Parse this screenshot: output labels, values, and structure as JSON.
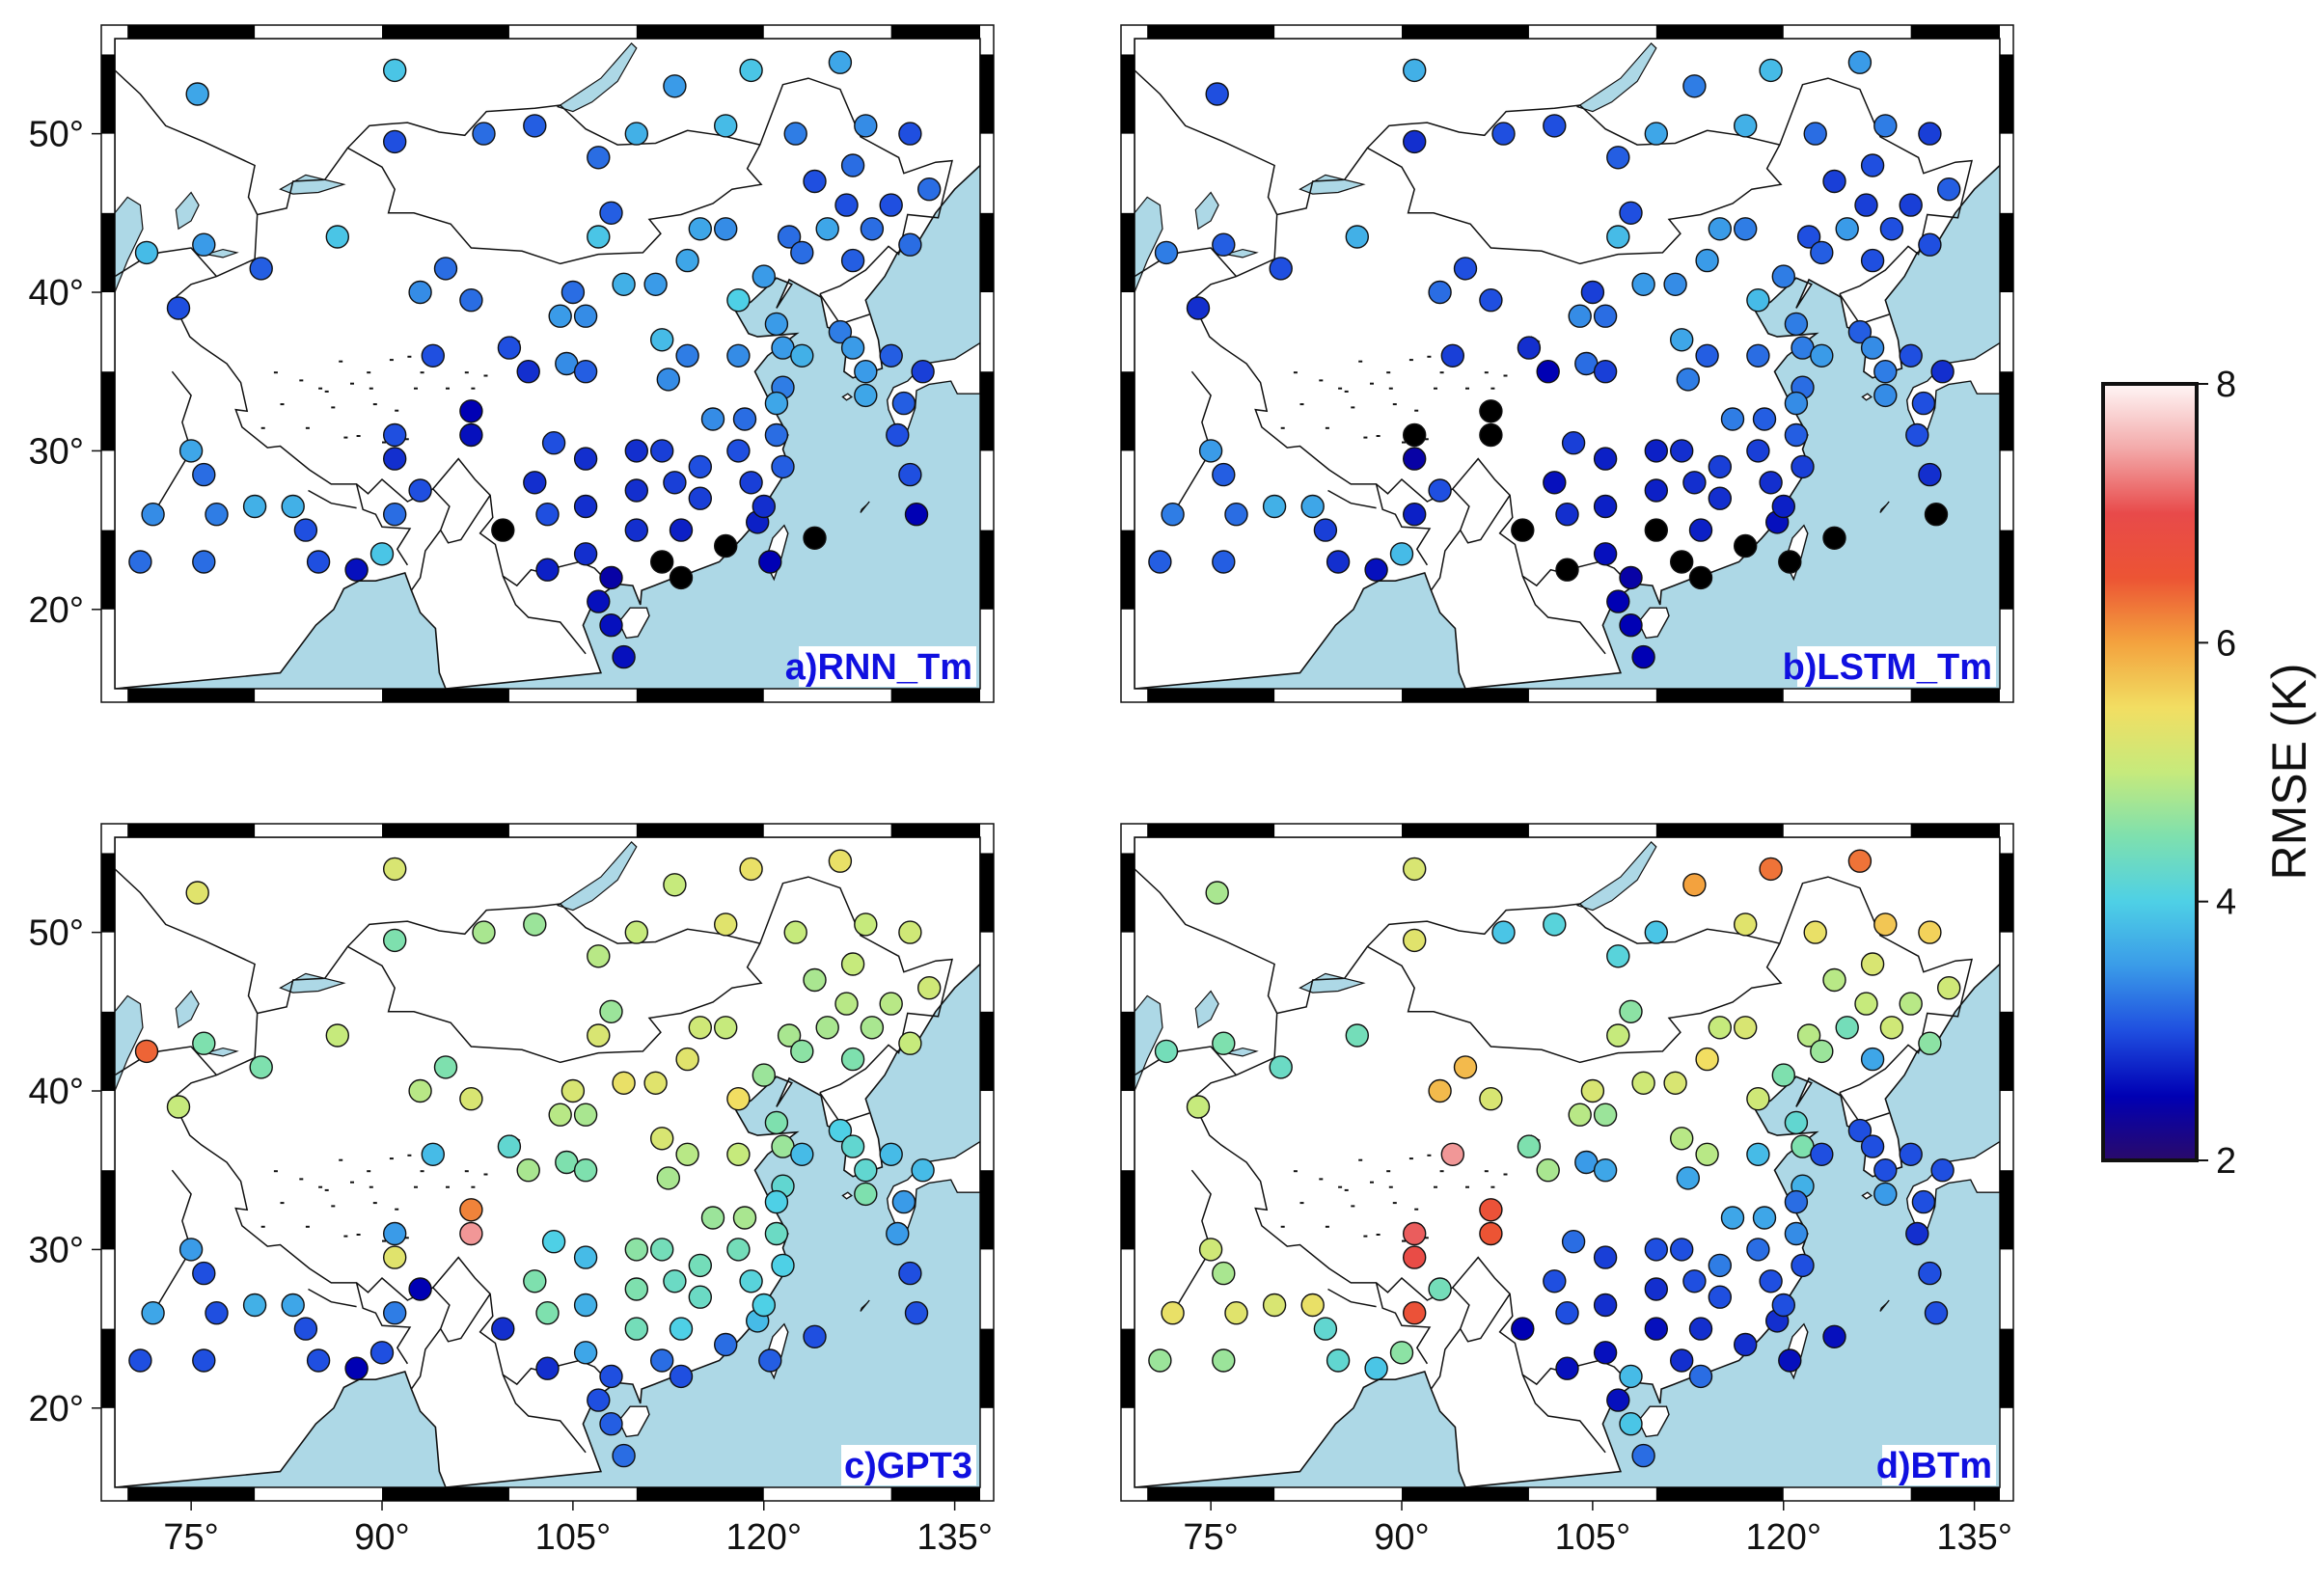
{
  "map": {
    "lon_range": [
      69,
      137
    ],
    "lat_range": [
      15,
      56
    ],
    "lon_ticks": [
      "75°",
      "90°",
      "105°",
      "120°",
      "135°"
    ],
    "lat_ticks": [
      "50°",
      "40°",
      "30°",
      "20°"
    ]
  },
  "colors": {
    "sea": "#add8e6",
    "land": "#ffffff",
    "label": "#1010e0",
    "outlier_black": "#000000"
  },
  "colorbar": {
    "label": "RMSE (K)",
    "min": 2,
    "max": 8,
    "ticks": [
      "8",
      "6",
      "4",
      "2"
    ]
  },
  "chart_data": {
    "type": "scatter",
    "stations": [
      [
        71.5,
        42.5
      ],
      [
        75.5,
        52.5
      ],
      [
        76,
        43
      ],
      [
        74,
        39
      ],
      [
        75,
        30
      ],
      [
        76,
        28.5
      ],
      [
        77,
        26
      ],
      [
        72,
        26
      ],
      [
        71,
        23
      ],
      [
        76,
        23
      ],
      [
        80,
        26.5
      ],
      [
        83,
        26.5
      ],
      [
        84,
        25
      ],
      [
        85,
        23
      ],
      [
        88,
        22.5
      ],
      [
        91,
        54
      ],
      [
        91,
        49.5
      ],
      [
        91,
        29.5
      ],
      [
        91,
        31
      ],
      [
        90,
        23.5
      ],
      [
        91,
        26
      ],
      [
        93,
        27.5
      ],
      [
        94,
        36
      ],
      [
        93,
        40
      ],
      [
        95,
        41.5
      ],
      [
        97,
        39.5
      ],
      [
        99.5,
        25
      ],
      [
        97,
        32.5
      ],
      [
        97,
        31
      ],
      [
        98,
        50
      ],
      [
        100,
        36.5
      ],
      [
        101.5,
        35
      ],
      [
        102,
        28
      ],
      [
        103.5,
        30.5
      ],
      [
        103,
        26
      ],
      [
        103,
        22.5
      ],
      [
        104.5,
        35.5
      ],
      [
        104,
        38.5
      ],
      [
        105,
        40
      ],
      [
        106,
        38.5
      ],
      [
        106,
        35
      ],
      [
        106,
        29.5
      ],
      [
        106,
        26.5
      ],
      [
        106,
        23.5
      ],
      [
        107,
        20.5
      ],
      [
        108,
        22
      ],
      [
        108,
        19
      ],
      [
        109,
        17
      ],
      [
        108,
        45
      ],
      [
        107,
        43.5
      ],
      [
        109,
        40.5
      ],
      [
        111.5,
        40.5
      ],
      [
        112,
        37
      ],
      [
        112.5,
        34.5
      ],
      [
        112,
        30
      ],
      [
        113,
        28
      ],
      [
        113.5,
        25
      ],
      [
        113.5,
        22
      ],
      [
        112,
        23
      ],
      [
        110,
        30
      ],
      [
        110,
        27.5
      ],
      [
        110,
        25
      ],
      [
        114,
        36
      ],
      [
        114,
        42
      ],
      [
        115,
        44
      ],
      [
        116,
        32
      ],
      [
        115,
        29
      ],
      [
        115,
        27
      ],
      [
        117,
        24
      ],
      [
        117,
        44
      ],
      [
        118,
        39.5
      ],
      [
        118,
        36
      ],
      [
        118.5,
        32
      ],
      [
        118,
        30
      ],
      [
        119,
        28
      ],
      [
        119.5,
        25.5
      ],
      [
        120,
        26.5
      ],
      [
        120.5,
        23
      ],
      [
        121,
        31
      ],
      [
        121.5,
        29
      ],
      [
        121.5,
        36.5
      ],
      [
        121,
        38
      ],
      [
        120,
        41
      ],
      [
        122,
        43.5
      ],
      [
        123,
        42.5
      ],
      [
        124,
        47
      ],
      [
        125,
        44
      ],
      [
        126.5,
        45.5
      ],
      [
        127,
        48
      ],
      [
        127,
        42
      ],
      [
        128.5,
        44
      ],
      [
        130,
        45.5
      ],
      [
        131.5,
        43
      ],
      [
        133,
        46.5
      ],
      [
        121.5,
        34
      ],
      [
        121,
        33
      ],
      [
        123,
        36
      ],
      [
        124,
        24.5
      ],
      [
        126,
        37.5
      ],
      [
        127,
        36.5
      ],
      [
        128,
        35
      ],
      [
        128,
        33.5
      ],
      [
        130,
        36
      ],
      [
        131,
        33
      ],
      [
        130.5,
        31
      ],
      [
        132.5,
        35
      ],
      [
        131.5,
        28.5
      ],
      [
        132,
        26
      ],
      [
        113,
        53
      ],
      [
        119,
        54
      ],
      [
        126,
        54.5
      ],
      [
        122.5,
        50
      ],
      [
        128,
        50.5
      ],
      [
        131.5,
        50
      ],
      [
        110,
        50
      ],
      [
        117,
        50.5
      ],
      [
        102,
        50.5
      ],
      [
        107,
        48.5
      ],
      [
        86.5,
        43.5
      ],
      [
        80.5,
        41.5
      ]
    ],
    "series": [
      {
        "name": "a)RNN_Tm",
        "values": [
          3.8,
          3.6,
          3.5,
          3.0,
          3.6,
          3.2,
          3.3,
          3.4,
          3.2,
          3.2,
          3.7,
          3.7,
          3.0,
          3.0,
          2.6,
          3.9,
          3.0,
          2.8,
          3.0,
          3.9,
          3.2,
          3.0,
          3.0,
          3.4,
          3.2,
          3.2,
          2.0,
          2.5,
          2.6,
          3.2,
          3.0,
          2.8,
          2.8,
          3.0,
          3.0,
          2.7,
          3.4,
          3.5,
          3.2,
          3.4,
          3.1,
          2.8,
          2.8,
          2.8,
          2.6,
          2.4,
          2.6,
          2.6,
          3.1,
          3.9,
          3.7,
          3.5,
          3.8,
          3.4,
          2.9,
          2.9,
          2.7,
          2.0,
          2.0,
          2.8,
          2.8,
          2.8,
          3.3,
          3.6,
          3.6,
          3.4,
          3.0,
          2.9,
          2.0,
          3.4,
          4.0,
          3.4,
          3.2,
          3.0,
          2.9,
          2.7,
          2.8,
          2.5,
          3.2,
          3.1,
          3.5,
          3.5,
          3.5,
          3.2,
          3.2,
          3.0,
          3.6,
          3.0,
          3.2,
          3.1,
          3.2,
          3.0,
          3.2,
          3.2,
          3.3,
          3.6,
          3.7,
          2.0,
          3.3,
          3.5,
          3.5,
          3.6,
          3.1,
          3.1,
          3.0,
          2.9,
          3.0,
          2.5,
          3.5,
          3.9,
          3.6,
          3.3,
          3.4,
          3.0,
          3.7,
          3.8,
          3.1,
          3.2,
          3.9,
          3.1
        ]
      },
      {
        "name": "b)LSTM_Tm",
        "values": [
          3.3,
          3.0,
          3.1,
          2.8,
          3.5,
          3.1,
          3.2,
          3.3,
          3.1,
          3.1,
          3.7,
          3.6,
          2.9,
          2.8,
          2.6,
          3.7,
          2.8,
          2.4,
          2.0,
          3.8,
          2.7,
          3.0,
          2.9,
          3.2,
          3.0,
          3.0,
          2.0,
          2.0,
          2.0,
          3.0,
          2.8,
          2.5,
          2.6,
          2.9,
          2.8,
          2.0,
          3.2,
          3.4,
          2.9,
          3.2,
          2.9,
          2.7,
          2.7,
          2.6,
          2.5,
          2.4,
          2.5,
          2.5,
          3.0,
          3.8,
          3.5,
          3.4,
          3.6,
          3.3,
          2.8,
          2.8,
          2.7,
          2.0,
          2.0,
          2.7,
          2.7,
          2.0,
          3.1,
          3.5,
          3.5,
          3.3,
          2.9,
          2.8,
          2.0,
          3.3,
          3.8,
          3.2,
          3.1,
          2.9,
          2.8,
          2.6,
          2.7,
          2.0,
          3.1,
          2.9,
          3.3,
          3.3,
          3.3,
          3.0,
          3.1,
          2.9,
          3.5,
          2.9,
          3.0,
          3.0,
          3.0,
          2.9,
          3.0,
          3.1,
          3.2,
          3.4,
          3.5,
          2.0,
          3.1,
          3.4,
          3.3,
          3.4,
          3.0,
          3.0,
          3.0,
          2.8,
          2.8,
          2.0,
          3.3,
          3.8,
          3.5,
          3.2,
          3.3,
          2.9,
          3.6,
          3.7,
          3.0,
          3.1,
          3.7,
          3.0
        ]
      },
      {
        "name": "c)GPT3",
        "values": [
          6.4,
          5.3,
          4.5,
          5.0,
          3.5,
          3.0,
          3.0,
          3.6,
          3.0,
          3.0,
          3.7,
          3.6,
          3.0,
          3.0,
          2.5,
          5.2,
          4.5,
          5.3,
          3.5,
          3.0,
          3.3,
          2.5,
          3.8,
          4.9,
          4.5,
          5.2,
          2.8,
          6.2,
          7.4,
          4.8,
          4.2,
          4.8,
          4.5,
          4.0,
          4.5,
          2.8,
          4.5,
          4.9,
          5.2,
          4.8,
          4.5,
          3.8,
          3.7,
          3.6,
          3.0,
          3.0,
          3.1,
          3.2,
          4.7,
          5.2,
          5.4,
          5.3,
          5.2,
          4.8,
          4.4,
          4.3,
          4.0,
          3.0,
          3.2,
          4.6,
          4.5,
          4.4,
          4.9,
          5.3,
          5.1,
          4.7,
          4.4,
          4.3,
          3.2,
          5.0,
          5.5,
          5.0,
          4.8,
          4.4,
          4.1,
          3.8,
          4.0,
          3.1,
          4.3,
          4.0,
          4.7,
          4.5,
          4.7,
          4.8,
          4.6,
          4.8,
          4.8,
          4.9,
          5.0,
          4.5,
          4.8,
          4.9,
          5.0,
          5.1,
          4.2,
          4.0,
          3.8,
          3.0,
          4.0,
          4.2,
          4.2,
          4.5,
          3.8,
          3.5,
          3.5,
          3.8,
          3.0,
          3.0,
          5.0,
          5.4,
          5.4,
          5.0,
          5.0,
          5.1,
          5.0,
          5.3,
          4.7,
          4.9,
          5.0,
          4.5
        ]
      },
      {
        "name": "d)BTm",
        "values": [
          4.4,
          4.8,
          4.5,
          5.0,
          5.1,
          4.8,
          5.3,
          5.4,
          4.7,
          4.7,
          5.2,
          5.4,
          4.2,
          4.2,
          3.9,
          5.2,
          5.3,
          6.9,
          7.1,
          4.6,
          6.6,
          4.4,
          7.4,
          5.8,
          5.8,
          5.2,
          2.5,
          6.6,
          6.5,
          3.9,
          4.5,
          4.8,
          3.0,
          3.2,
          3.0,
          2.6,
          3.5,
          4.9,
          5.2,
          4.7,
          3.6,
          2.9,
          2.8,
          2.6,
          2.6,
          3.8,
          3.9,
          3.2,
          4.6,
          5.0,
          5.1,
          5.2,
          4.9,
          3.6,
          3.0,
          3.0,
          2.8,
          3.2,
          2.8,
          3.0,
          2.8,
          2.6,
          4.9,
          5.5,
          5.0,
          3.6,
          3.3,
          3.0,
          2.8,
          5.2,
          5.1,
          3.8,
          3.6,
          3.2,
          3.0,
          2.8,
          3.0,
          2.6,
          3.4,
          3.0,
          4.5,
          4.2,
          4.5,
          4.9,
          4.7,
          4.9,
          4.4,
          5.0,
          5.2,
          3.6,
          5.1,
          4.9,
          4.6,
          5.1,
          3.7,
          3.2,
          3.0,
          2.6,
          3.0,
          3.0,
          3.0,
          3.5,
          3.0,
          3.0,
          2.8,
          3.0,
          3.0,
          3.0,
          6.0,
          6.3,
          6.3,
          5.4,
          5.7,
          5.6,
          3.9,
          5.3,
          4.1,
          4.1,
          4.4,
          4.3
        ]
      }
    ]
  }
}
